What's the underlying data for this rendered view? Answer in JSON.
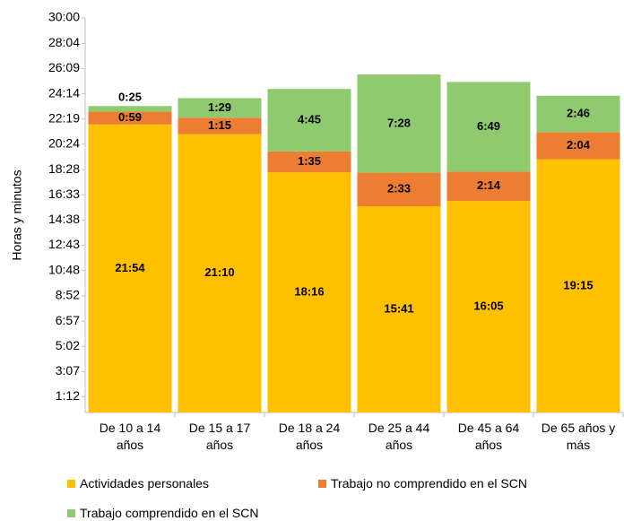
{
  "chart_data": {
    "type": "stacked_bar",
    "y_label": "Horas y minutos",
    "categories": [
      "De 10 a 14 años",
      "De 15 a 17 años",
      "De 18 a 24 años",
      "De 25 a 44 años",
      "De 45 a 64 años",
      "De 65 años y más"
    ],
    "series": [
      {
        "name": "Actividades personales",
        "color": "#FFC000",
        "values": [
          21.9,
          21.1667,
          18.2667,
          15.6833,
          16.0833,
          19.25
        ],
        "value_labels": [
          "21:54",
          "21:10",
          "18:16",
          "15:41",
          "16:05",
          "19:15"
        ]
      },
      {
        "name": "Trabajo no comprendido en el SCN",
        "color": "#ED7D31",
        "values": [
          0.9833,
          1.25,
          1.5833,
          2.55,
          2.2333,
          2.0667
        ],
        "value_labels": [
          "0:59",
          "1:15",
          "1:35",
          "2:33",
          "2:14",
          "2:04"
        ]
      },
      {
        "name": "Trabajo comprendido en el SCN",
        "color": "#8FCB6E",
        "values": [
          0.4167,
          1.4833,
          4.75,
          7.4667,
          6.8167,
          2.7667
        ],
        "value_labels": [
          "0:25",
          "1:29",
          "4:45",
          "7:28",
          "6:49",
          "2:46"
        ]
      }
    ],
    "ylim": [
      0,
      30
    ],
    "yticks": [
      {
        "value": 1.2,
        "label": "1:12"
      },
      {
        "value": 3.1167,
        "label": "3:07"
      },
      {
        "value": 5.0333,
        "label": "5:02"
      },
      {
        "value": 6.95,
        "label": "6:57"
      },
      {
        "value": 8.8667,
        "label": "8:52"
      },
      {
        "value": 10.8,
        "label": "10:48"
      },
      {
        "value": 12.7167,
        "label": "12:43"
      },
      {
        "value": 14.6333,
        "label": "14:38"
      },
      {
        "value": 16.55,
        "label": "16:33"
      },
      {
        "value": 18.4667,
        "label": "18:28"
      },
      {
        "value": 20.4,
        "label": "20:24"
      },
      {
        "value": 22.3167,
        "label": "22:19"
      },
      {
        "value": 24.2333,
        "label": "24:14"
      },
      {
        "value": 26.15,
        "label": "26:09"
      },
      {
        "value": 28.0667,
        "label": "28:04"
      },
      {
        "value": 30,
        "label": "30:00"
      }
    ],
    "legend": "bottom"
  }
}
